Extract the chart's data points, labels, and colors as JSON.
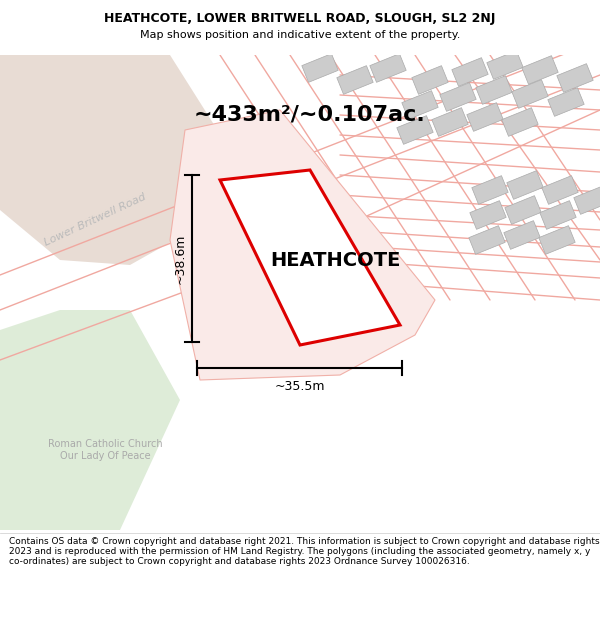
{
  "title_line1": "HEATHCOTE, LOWER BRITWELL ROAD, SLOUGH, SL2 2NJ",
  "title_line2": "Map shows position and indicative extent of the property.",
  "footer_text": "Contains OS data © Crown copyright and database right 2021. This information is subject to Crown copyright and database rights 2023 and is reproduced with the permission of HM Land Registry. The polygons (including the associated geometry, namely x, y co-ordinates) are subject to Crown copyright and database rights 2023 Ordnance Survey 100026316.",
  "area_label": "~433m²/~0.107ac.",
  "property_label": "HEATHCOTE",
  "dim_height": "~38.6m",
  "dim_width": "~35.5m",
  "road_label": "Lower Britwell Road",
  "church_label": "Roman Catholic Church\nOur Lady Of Peace",
  "bg_color": "#ffffff",
  "tan_color": "#e8dcd4",
  "green_color": "#deecd8",
  "property_outline_color": "#dd0000",
  "property_fill": "#ffffff",
  "outer_fill": "#faeae8",
  "outer_edge": "#f0b0a8",
  "dim_color": "#000000",
  "road_line_color": "#f0a8a0",
  "gray_block_fill": "#cccccc",
  "gray_block_edge": "#aaaaaa",
  "road_label_color": "#bbbbbb",
  "church_label_color": "#aaaaaa",
  "title_fontsize": 9,
  "subtitle_fontsize": 8,
  "footer_fontsize": 6.5,
  "area_fontsize": 16,
  "property_fontsize": 14,
  "dim_fontsize": 9,
  "road_fontsize": 8,
  "church_fontsize": 7
}
